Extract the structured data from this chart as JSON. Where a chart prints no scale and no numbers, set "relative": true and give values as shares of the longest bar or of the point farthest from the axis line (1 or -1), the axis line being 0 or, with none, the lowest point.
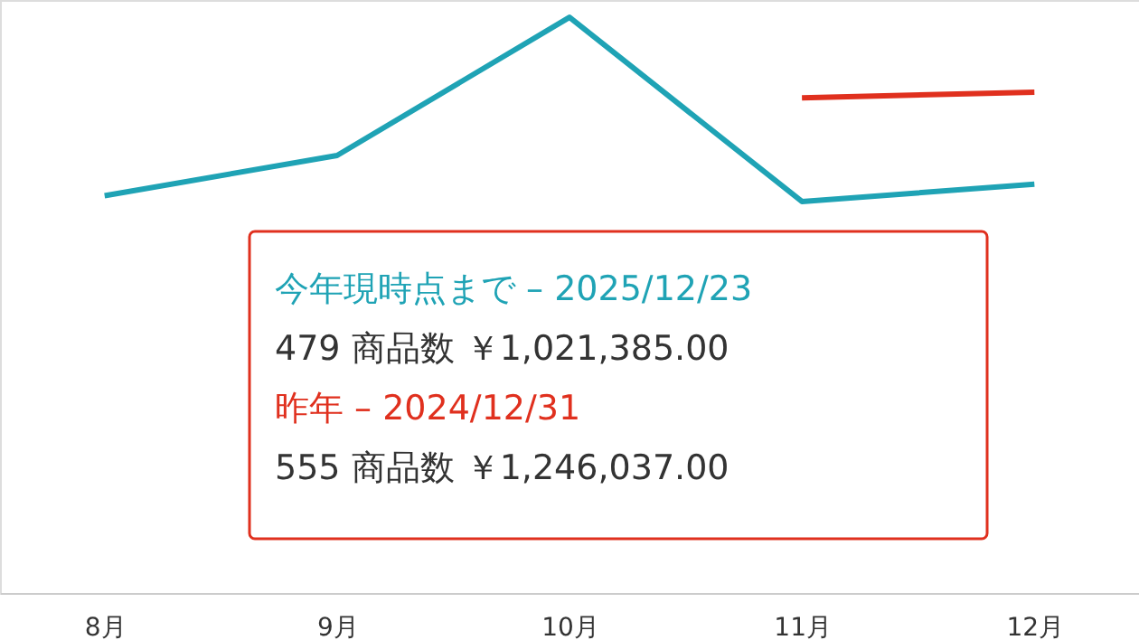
{
  "chart_data": {
    "type": "line",
    "relative": true,
    "categories": [
      "8月",
      "9月",
      "10月",
      "11月",
      "12月"
    ],
    "series": [
      {
        "color": "#1fa3b5",
        "values": [
          0.69,
          0.76,
          1,
          0.68,
          0.71
        ]
      },
      {
        "color": "#e0301e",
        "values": [
          null,
          null,
          null,
          0.86,
          0.87
        ]
      }
    ],
    "annotations": [
      "今年現時点まで – 2025/12/23",
      "479 商品数 ￥1,021,385.00",
      "昨年 – 2024/12/31",
      "555 商品数 ￥1,246,037.00"
    ]
  }
}
